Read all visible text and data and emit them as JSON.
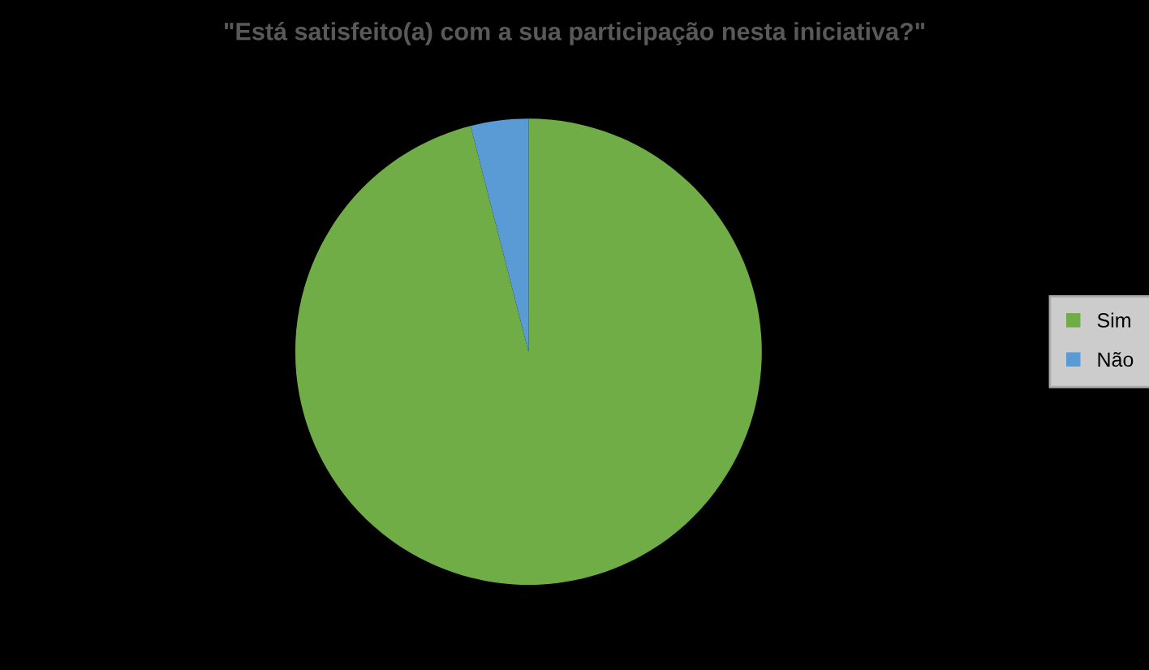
{
  "chart_data": {
    "type": "pie",
    "title": "\"Está satisfeito(a) com a sua participação nesta iniciativa?\"",
    "categories": [
      "Sim",
      "Não"
    ],
    "values": [
      96,
      4
    ],
    "colors": [
      "#70ad47",
      "#5b9bd5"
    ],
    "legend": "right"
  }
}
